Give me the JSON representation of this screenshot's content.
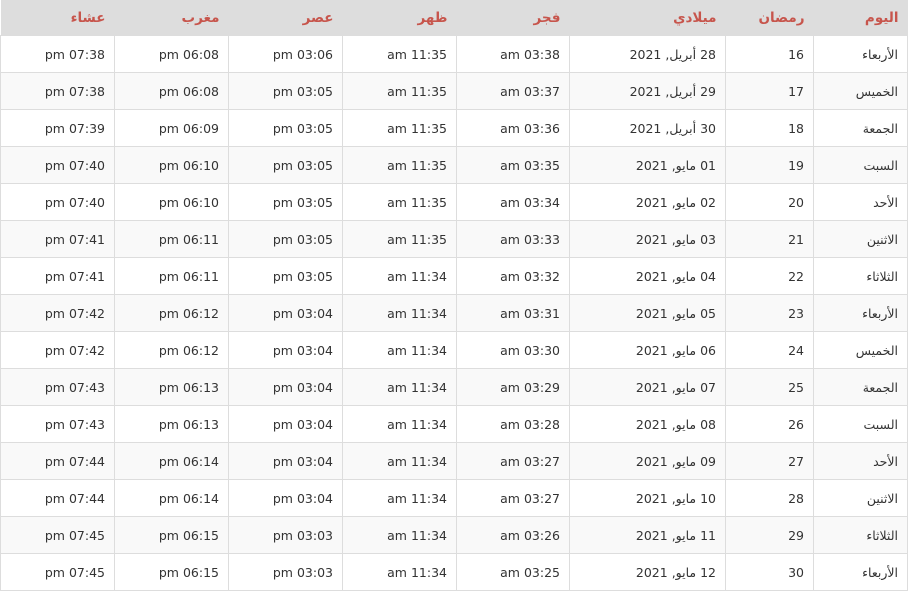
{
  "accent_color": "#c7554c",
  "headers": [
    "اليوم",
    "رمضان",
    "ميلادي",
    "فجر",
    "ظهر",
    "عصر",
    "مغرب",
    "عشاء"
  ],
  "rows": [
    [
      "الأربعاء",
      "16",
      "28 أبريل, 2021",
      "03:38 am",
      "11:35 am",
      "03:06 pm",
      "06:08 pm",
      "07:38 pm"
    ],
    [
      "الخميس",
      "17",
      "29 أبريل, 2021",
      "03:37 am",
      "11:35 am",
      "03:05 pm",
      "06:08 pm",
      "07:38 pm"
    ],
    [
      "الجمعة",
      "18",
      "30 أبريل, 2021",
      "03:36 am",
      "11:35 am",
      "03:05 pm",
      "06:09 pm",
      "07:39 pm"
    ],
    [
      "السبت",
      "19",
      "01 مايو, 2021",
      "03:35 am",
      "11:35 am",
      "03:05 pm",
      "06:10 pm",
      "07:40 pm"
    ],
    [
      "الأحد",
      "20",
      "02 مايو, 2021",
      "03:34 am",
      "11:35 am",
      "03:05 pm",
      "06:10 pm",
      "07:40 pm"
    ],
    [
      "الاثنين",
      "21",
      "03 مايو, 2021",
      "03:33 am",
      "11:35 am",
      "03:05 pm",
      "06:11 pm",
      "07:41 pm"
    ],
    [
      "الثلاثاء",
      "22",
      "04 مايو, 2021",
      "03:32 am",
      "11:34 am",
      "03:05 pm",
      "06:11 pm",
      "07:41 pm"
    ],
    [
      "الأربعاء",
      "23",
      "05 مايو, 2021",
      "03:31 am",
      "11:34 am",
      "03:04 pm",
      "06:12 pm",
      "07:42 pm"
    ],
    [
      "الخميس",
      "24",
      "06 مايو, 2021",
      "03:30 am",
      "11:34 am",
      "03:04 pm",
      "06:12 pm",
      "07:42 pm"
    ],
    [
      "الجمعة",
      "25",
      "07 مايو, 2021",
      "03:29 am",
      "11:34 am",
      "03:04 pm",
      "06:13 pm",
      "07:43 pm"
    ],
    [
      "السبت",
      "26",
      "08 مايو, 2021",
      "03:28 am",
      "11:34 am",
      "03:04 pm",
      "06:13 pm",
      "07:43 pm"
    ],
    [
      "الأحد",
      "27",
      "09 مايو, 2021",
      "03:27 am",
      "11:34 am",
      "03:04 pm",
      "06:14 pm",
      "07:44 pm"
    ],
    [
      "الاثنين",
      "28",
      "10 مايو, 2021",
      "03:27 am",
      "11:34 am",
      "03:04 pm",
      "06:14 pm",
      "07:44 pm"
    ],
    [
      "الثلاثاء",
      "29",
      "11 مايو, 2021",
      "03:26 am",
      "11:34 am",
      "03:03 pm",
      "06:15 pm",
      "07:45 pm"
    ],
    [
      "الأربعاء",
      "30",
      "12 مايو, 2021",
      "03:25 am",
      "11:34 am",
      "03:03 pm",
      "06:15 pm",
      "07:45 pm"
    ]
  ]
}
